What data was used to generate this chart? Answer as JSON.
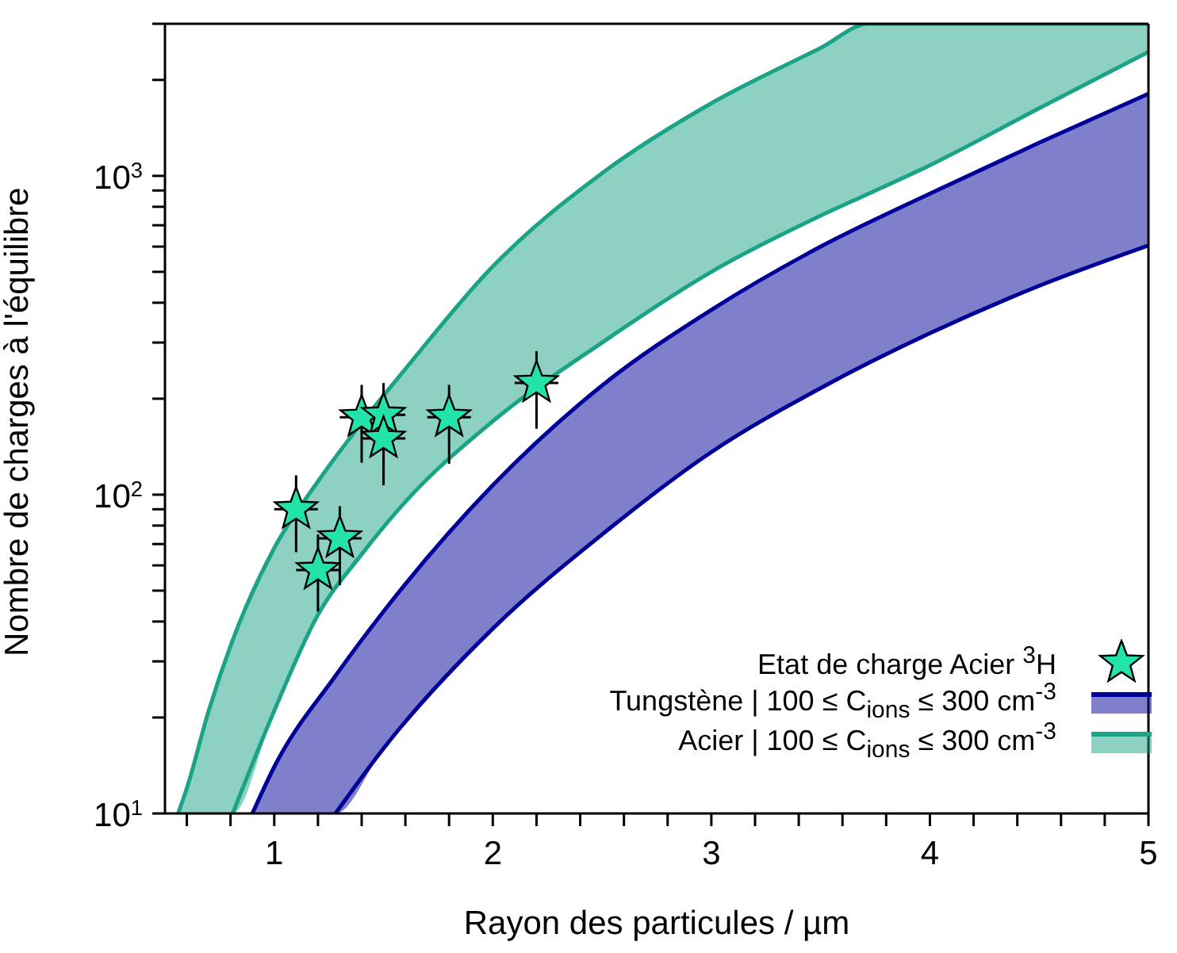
{
  "chart_data": {
    "type": "line",
    "xlabel": "Rayon des particules / µm",
    "ylabel": "Nombre de charges à l'équilibre",
    "log": "y",
    "legend": "bottom right",
    "xlim": [
      0.5,
      5
    ],
    "xticks": [
      {
        "value": 0.6,
        "label": null
      },
      {
        "value": 0.8,
        "label": null
      },
      1,
      {
        "value": 1.2,
        "label": null
      },
      {
        "value": 1.4,
        "label": null
      },
      {
        "value": 1.6,
        "label": null
      },
      {
        "value": 1.8,
        "label": null
      },
      2,
      {
        "value": 2.2,
        "label": null
      },
      {
        "value": 2.4,
        "label": null
      },
      {
        "value": 2.6,
        "label": null
      },
      {
        "value": 2.8,
        "label": null
      },
      3,
      {
        "value": 3.2,
        "label": null
      },
      {
        "value": 3.4,
        "label": null
      },
      {
        "value": 3.6,
        "label": null
      },
      {
        "value": 3.8,
        "label": null
      },
      4,
      {
        "value": 4.2,
        "label": null
      },
      {
        "value": 4.4,
        "label": null
      },
      {
        "value": 4.6,
        "label": null
      },
      {
        "value": 4.8,
        "label": null
      },
      5
    ],
    "ylim": [
      10,
      3000
    ],
    "yticks": [
      {
        "value": 10,
        "label": "10$^{1}$"
      },
      {
        "value": 20,
        "label": null
      },
      {
        "value": 30,
        "label": null
      },
      {
        "value": 40,
        "label": null
      },
      {
        "value": 50,
        "label": null
      },
      {
        "value": 60,
        "label": null
      },
      {
        "value": 70,
        "label": null
      },
      {
        "value": 80,
        "label": null
      },
      {
        "value": 90,
        "label": null
      },
      {
        "value": 100,
        "label": "10$^{2}$"
      },
      {
        "value": 200,
        "label": null
      },
      {
        "value": 300,
        "label": null
      },
      {
        "value": 400,
        "label": null
      },
      {
        "value": 500,
        "label": null
      },
      {
        "value": 600,
        "label": null
      },
      {
        "value": 700,
        "label": null
      },
      {
        "value": 800,
        "label": null
      },
      {
        "value": 900,
        "label": null
      },
      {
        "value": 1000,
        "label": "10$^{3}$"
      },
      {
        "value": 2000,
        "label": null
      },
      {
        "value": 3000,
        "label": null
      }
    ],
    "series": [
      {
        "name": "Etat de charge Acier $^{3}$H",
        "type": "scatter",
        "marker": "star",
        "color": "#22e3aa",
        "x": [
          1.1,
          1.2,
          1.3,
          1.4,
          1.5,
          1.5,
          1.8,
          2.2
        ],
        "values": [
          90,
          58,
          73,
          175,
          178,
          150,
          175,
          224
        ],
        "errors": [
          [
            66,
            115
          ],
          [
            43,
            75
          ],
          [
            52,
            92
          ],
          [
            126,
            221
          ],
          [
            127,
            224
          ],
          [
            107,
            190
          ],
          [
            125,
            221
          ],
          [
            161,
            282
          ]
        ],
        "xerrors": [
          0.1,
          0.1,
          0.1,
          0.1,
          0.1,
          0.1,
          0.1,
          0.1
        ]
      },
      {
        "name": "Tungstène | 100 ≤ C$_{ions}$ ≤ 300 cm$^{-3}$",
        "color": "#000099",
        "x": [
          0.9,
          1,
          1.28,
          1.5,
          2,
          2.5,
          3,
          3.5,
          4,
          4.5,
          5
        ],
        "values": [
          10,
          14,
          27,
          43,
          107,
          220,
          380,
          600,
          880,
          1270,
          1810
        ],
        "lower": [
          10,
          10,
          10,
          16,
          38,
          75,
          136,
          216,
          321,
          452,
          605
        ],
        "upper": [
          10,
          14,
          27,
          43,
          107,
          220,
          380,
          600,
          880,
          1270,
          1810
        ]
      },
      {
        "color": "#000099",
        "x": [
          1.28,
          1.5,
          2,
          2.5,
          3,
          3.5,
          4,
          4.5,
          5
        ],
        "values": [
          10,
          16,
          38,
          75,
          136,
          216,
          321,
          452,
          605
        ]
      },
      {
        "name": "Acier | 100 ≤ C$_{ions}$ ≤ 300 cm$^{-3}$",
        "color": "#1aa385",
        "x": [
          0.56,
          0.6,
          0.7,
          0.81,
          1,
          1.2,
          1.4,
          1.6,
          2,
          2.5,
          3,
          3.5,
          3.72,
          4,
          4.5,
          5
        ],
        "values": [
          10,
          12,
          21,
          35,
          68,
          110,
          168,
          248,
          520,
          1020,
          1690,
          2520,
          3000,
          3000,
          3000,
          3000
        ],
        "lower": [
          10,
          10,
          10,
          10,
          21,
          42,
          65,
          95,
          170,
          300,
          500,
          750,
          880,
          1080,
          1630,
          2450
        ],
        "upper": [
          10,
          12,
          21,
          35,
          68,
          110,
          168,
          248,
          520,
          1020,
          1690,
          2520,
          3000,
          3000,
          3000,
          3000
        ]
      },
      {
        "color": "#1aa385",
        "x": [
          0.81,
          1,
          1.2,
          1.4,
          1.6,
          2,
          2.5,
          3,
          3.5,
          3.72,
          4,
          4.5,
          5
        ],
        "values": [
          10,
          21,
          42,
          65,
          95,
          170,
          300,
          500,
          750,
          880,
          1080,
          1630,
          2450
        ]
      }
    ]
  }
}
